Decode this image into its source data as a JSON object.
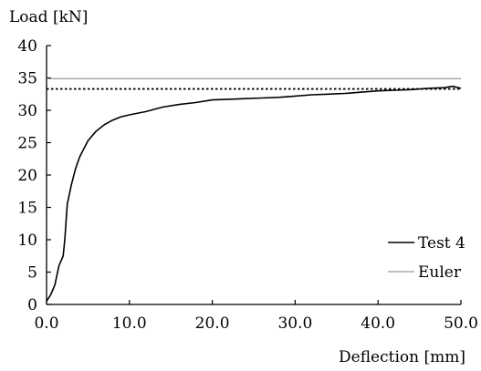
{
  "chart_data": {
    "type": "line",
    "title": "",
    "ylabel": "Load [kN]",
    "xlabel": "Deflection [mm]",
    "xlim": [
      0,
      50
    ],
    "ylim": [
      0,
      40
    ],
    "x_ticks": [
      "0.0",
      "10.0",
      "20.0",
      "30.0",
      "40.0",
      "50.0"
    ],
    "y_ticks": [
      "0",
      "5",
      "10",
      "15",
      "20",
      "25",
      "30",
      "35",
      "40"
    ],
    "grid": false,
    "legend_position": "bottom-right",
    "series": [
      {
        "name": "Test 4",
        "color": "#000000",
        "x": [
          0,
          0.5,
          1.0,
          1.5,
          2.0,
          2.2,
          2.5,
          3.0,
          3.5,
          4.0,
          5.0,
          6.0,
          7.0,
          8.0,
          9.0,
          10.0,
          12.0,
          14.0,
          16.0,
          18.0,
          20.0,
          22.0,
          24.0,
          26.0,
          28.0,
          30.0,
          32.0,
          34.0,
          36.0,
          38.0,
          40.0,
          42.0,
          44.0,
          46.0,
          48.0,
          49.0,
          50.0
        ],
        "y": [
          0.5,
          1.5,
          3.0,
          6.0,
          7.5,
          10.0,
          15.5,
          18.5,
          21.0,
          22.8,
          25.3,
          26.8,
          27.8,
          28.5,
          29.0,
          29.3,
          29.8,
          30.5,
          30.9,
          31.2,
          31.6,
          31.7,
          31.8,
          31.9,
          32.0,
          32.2,
          32.4,
          32.5,
          32.6,
          32.8,
          33.0,
          33.1,
          33.2,
          33.4,
          33.5,
          33.7,
          33.4
        ]
      },
      {
        "name": "Euler",
        "color": "#808080",
        "x": [
          0,
          50
        ],
        "y": [
          34.9,
          34.9
        ]
      }
    ],
    "reference_lines": [
      {
        "style": "dotted",
        "color": "#000000",
        "y": 33.3,
        "x_start": 0,
        "x_end": 50
      }
    ]
  }
}
